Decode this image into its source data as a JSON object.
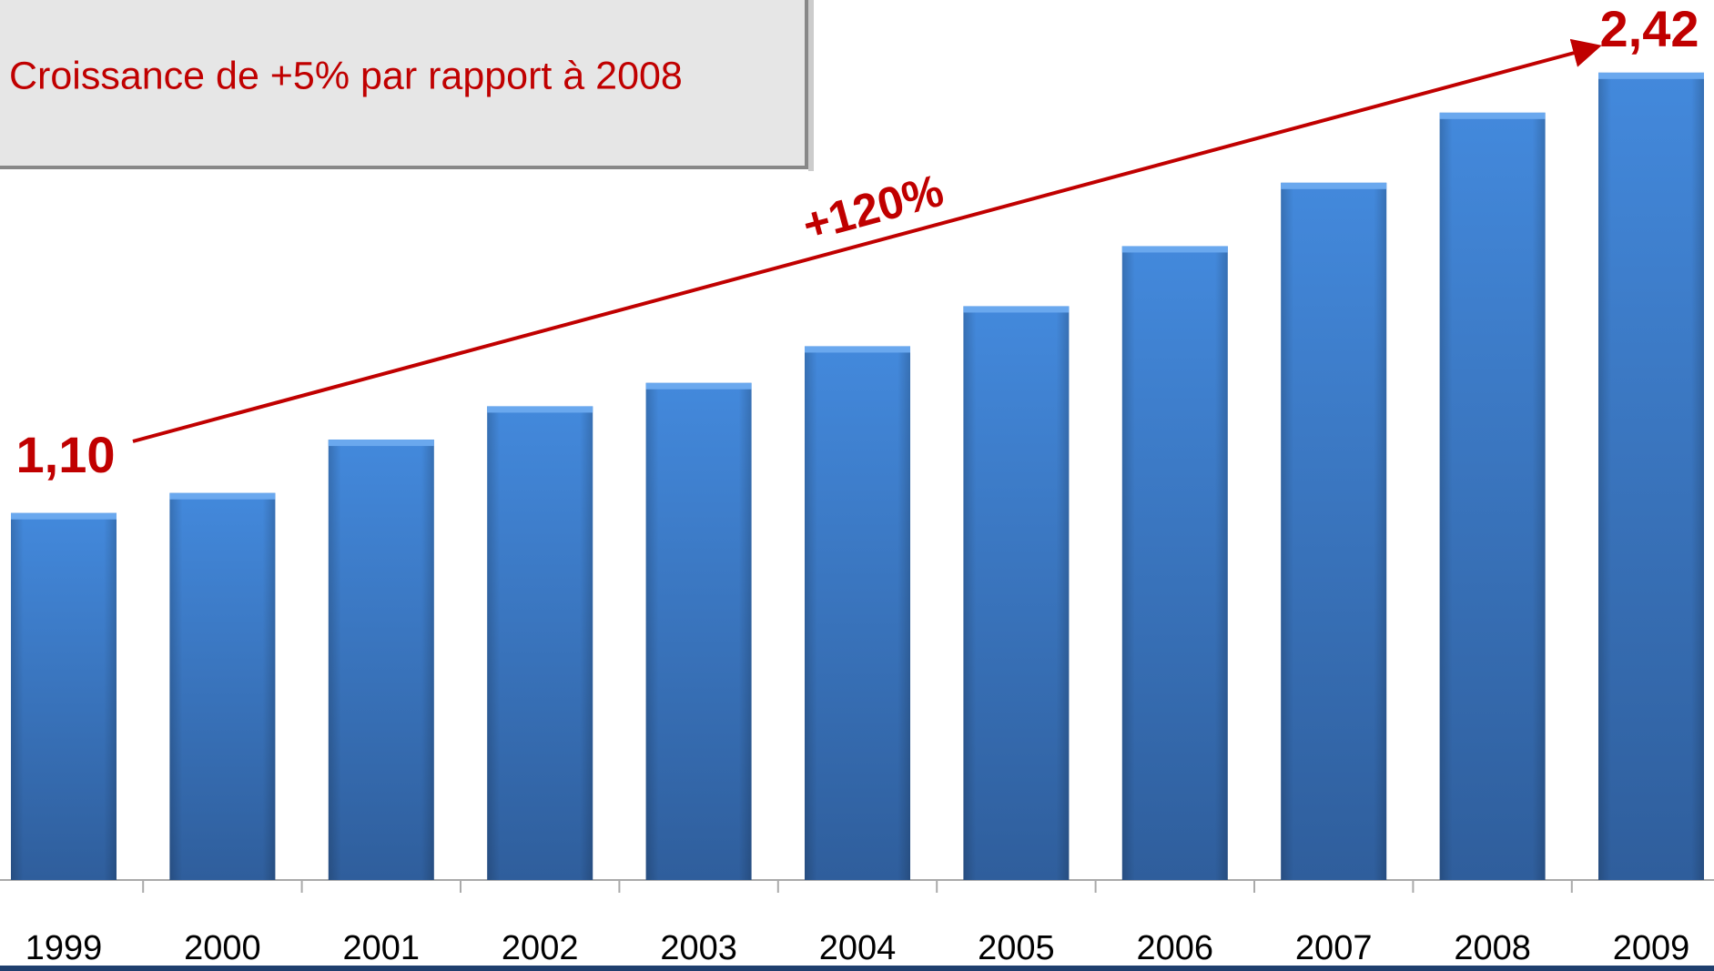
{
  "chart_data": {
    "type": "bar",
    "categories": [
      "1999",
      "2000",
      "2001",
      "2002",
      "2003",
      "2004",
      "2005",
      "2006",
      "2007",
      "2008",
      "2009"
    ],
    "values": [
      1.1,
      1.16,
      1.32,
      1.42,
      1.49,
      1.6,
      1.72,
      1.9,
      2.09,
      2.3,
      2.42
    ],
    "value_labels": [
      "1,10",
      null,
      null,
      null,
      null,
      null,
      null,
      null,
      null,
      null,
      "2,42"
    ],
    "color": "#3f7fcf",
    "annotations": {
      "box": "Croissance de +5% par rapport à 2008",
      "growth": "+120%"
    }
  }
}
